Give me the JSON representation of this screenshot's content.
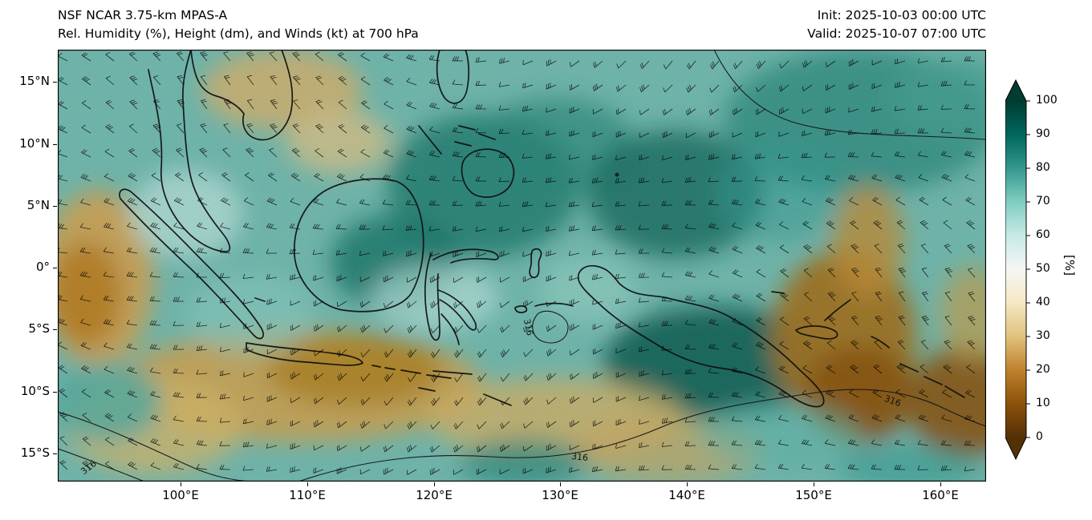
{
  "header": {
    "model_title": "NSF NCAR 3.75-km MPAS-A",
    "field_title": "Rel. Humidity (%), Height (dm), and Winds (kt) at 700 hPa",
    "init_label": "Init: 2025-10-03 00:00 UTC",
    "valid_label": "Valid: 2025-10-07 07:00 UTC"
  },
  "map": {
    "x_tick_labels": [
      "100°E",
      "110°E",
      "120°E",
      "130°E",
      "140°E",
      "150°E",
      "160°E"
    ],
    "y_tick_labels": [
      "15°N",
      "10°N",
      "5°N",
      "0°",
      "5°S",
      "10°S",
      "15°S"
    ],
    "contour_labels": [
      "316",
      "316",
      "316",
      "316"
    ]
  },
  "colorbar": {
    "unit_label": "[%]",
    "tick_labels": [
      "100",
      "90",
      "80",
      "70",
      "60",
      "50",
      "40",
      "30",
      "20",
      "10",
      "0"
    ],
    "colormap": [
      "#003c30",
      "#01665e",
      "#35978f",
      "#80cdc1",
      "#c7eae5",
      "#f5f5f5",
      "#f6e8c3",
      "#dfc27d",
      "#bf812d",
      "#8c510a",
      "#543005"
    ]
  },
  "chart_data": {
    "type": "heatmap",
    "title": "Rel. Humidity (%), Height (dm), and Winds (kt) at 700 hPa",
    "field": "Relative Humidity",
    "units": "%",
    "level": "700 hPa",
    "colorbar_range": [
      0,
      100
    ],
    "colorbar_ticks": [
      0,
      10,
      20,
      30,
      40,
      50,
      60,
      70,
      80,
      90,
      100
    ],
    "x_ticks": [
      "100°E",
      "110°E",
      "120°E",
      "130°E",
      "140°E",
      "150°E",
      "160°E"
    ],
    "y_ticks": [
      "15°N",
      "10°N",
      "5°N",
      "0°",
      "5°S",
      "10°S",
      "15°S"
    ],
    "height_contour_labels_dm": [
      316
    ],
    "overlays": [
      "geopotential height contours (dm)",
      "wind barbs (kt)",
      "coastlines"
    ],
    "legend_position": "right-colorbar"
  }
}
